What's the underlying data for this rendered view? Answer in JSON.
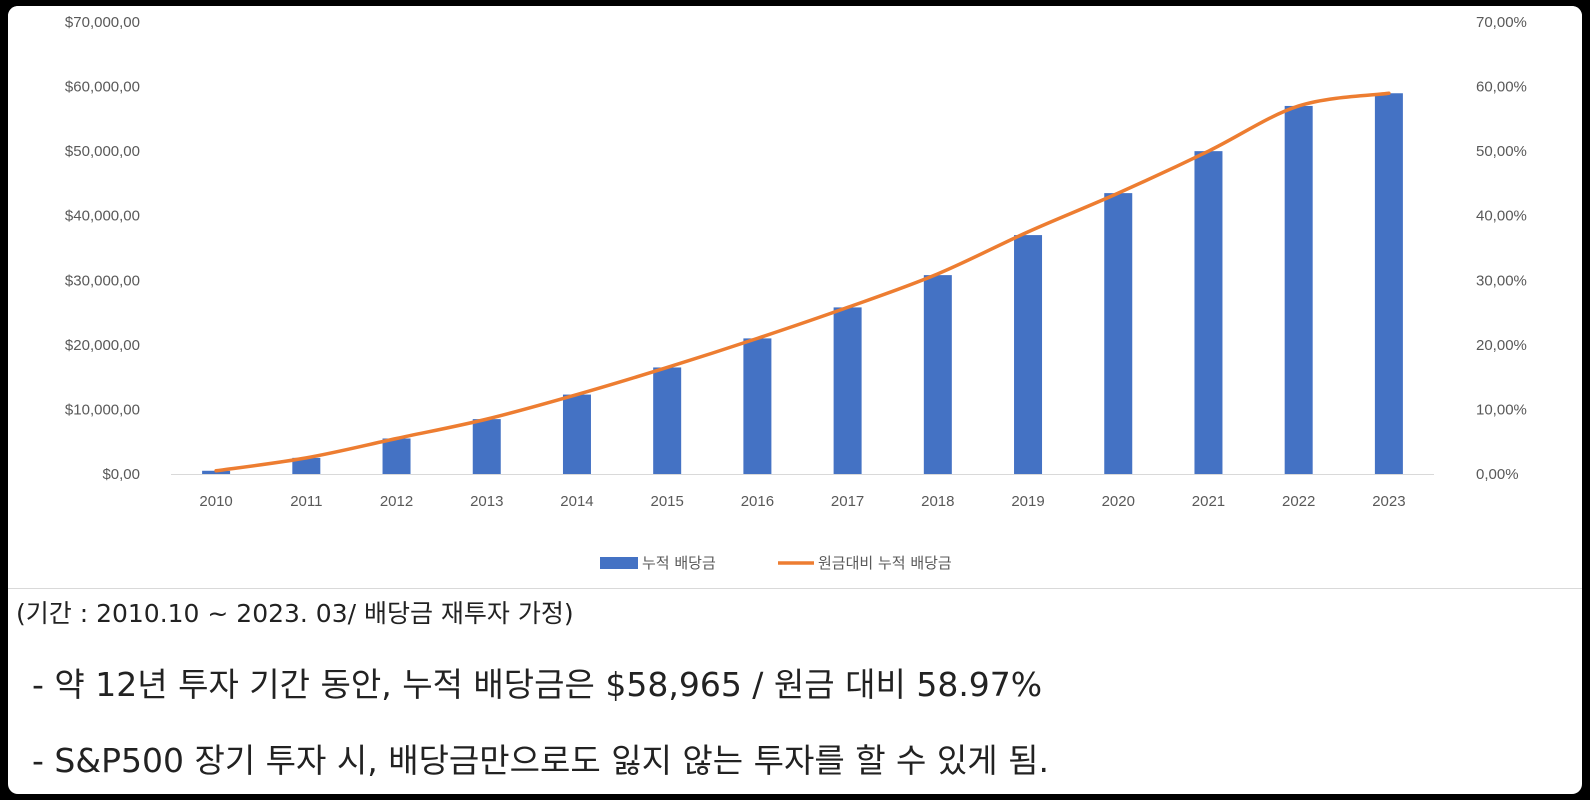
{
  "chart_data": {
    "type": "bar",
    "categories": [
      "2010",
      "2011",
      "2012",
      "2013",
      "2014",
      "2015",
      "2016",
      "2017",
      "2018",
      "2019",
      "2020",
      "2021",
      "2022",
      "2023"
    ],
    "series": [
      {
        "name": "누적 배당금",
        "type": "bar",
        "axis": "left",
        "color": "#4472C4",
        "values": [
          500,
          2500,
          5500,
          8500,
          12300,
          16500,
          21000,
          25800,
          30800,
          37000,
          43500,
          50000,
          57000,
          58965
        ]
      },
      {
        "name": "원금대비 누적 배당금",
        "type": "line",
        "axis": "right",
        "color": "#ED7D31",
        "values": [
          0.5,
          2.5,
          5.5,
          8.5,
          12.3,
          16.5,
          21.0,
          25.8,
          31.0,
          37.5,
          43.5,
          50.0,
          57.0,
          58.97
        ]
      }
    ],
    "left_axis": {
      "ylim": [
        0,
        70000
      ],
      "tick_values": [
        0,
        10000,
        20000,
        30000,
        40000,
        50000,
        60000,
        70000
      ],
      "tick_labels": [
        "$0,00",
        "$10,000,00",
        "$20,000,00",
        "$30,000,00",
        "$40,000,00",
        "$50,000,00",
        "$60,000,00",
        "$70,000,00"
      ]
    },
    "right_axis": {
      "ylim": [
        0,
        70
      ],
      "tick_values": [
        0,
        10,
        20,
        30,
        40,
        50,
        60,
        70
      ],
      "tick_labels": [
        "0,00%",
        "10,00%",
        "20,00%",
        "30,00%",
        "40,00%",
        "50,00%",
        "60,00%",
        "70,00%"
      ]
    },
    "legend_position": "bottom",
    "grid": false
  },
  "caption": "(기간 : 2010.10 ~ 2023. 03/ 배당금 재투자 가정)",
  "notes": [
    "- 약 12년 투자 기간 동안, 누적 배당금은 $58,965 / 원금 대비 58.97%",
    "- S&P500 장기 투자 시, 배당금만으로도 잃지 않는 투자를 할 수 있게 됨."
  ]
}
